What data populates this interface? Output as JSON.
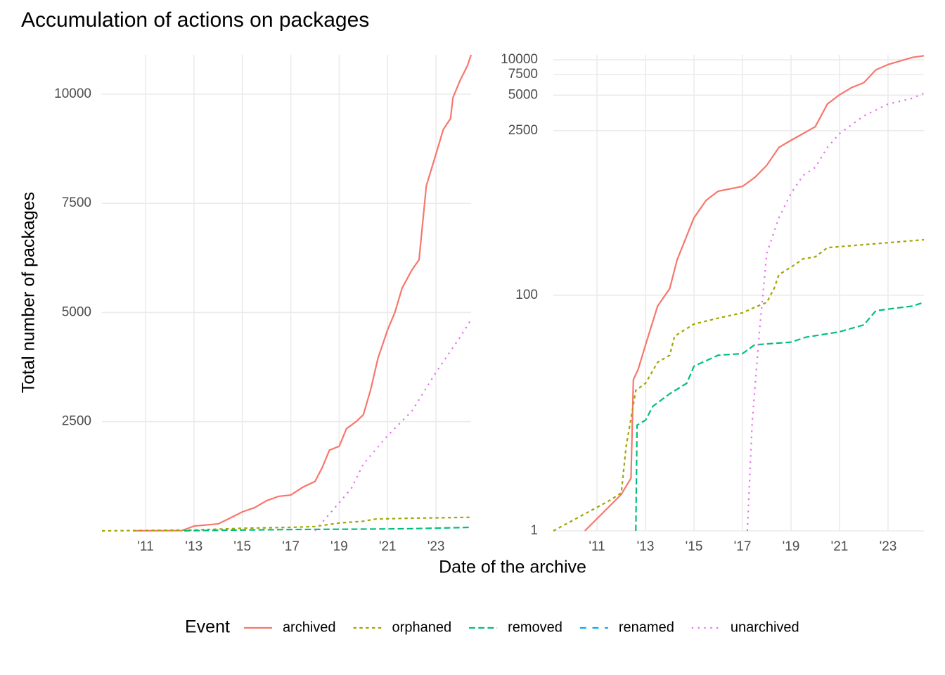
{
  "title": "Accumulation of actions on packages",
  "xlabel": "Date of the archive",
  "ylabel": "Total number of packages",
  "legend_title": "Event",
  "legend_position": "bottom",
  "chart_data": [
    {
      "type": "line",
      "log_y": false,
      "grid": true,
      "xlim": [
        2009.2,
        2024.45
      ],
      "ylim": [
        0,
        10900
      ],
      "xticks": [
        {
          "value": 2011,
          "label": "'11"
        },
        {
          "value": 2013,
          "label": "'13"
        },
        {
          "value": 2015,
          "label": "'15"
        },
        {
          "value": 2017,
          "label": "'17"
        },
        {
          "value": 2019,
          "label": "'19"
        },
        {
          "value": 2021,
          "label": "'21"
        },
        {
          "value": 2023,
          "label": "'23"
        }
      ],
      "yticks": [
        2500,
        5000,
        7500,
        10000
      ],
      "series": [
        {
          "name": "archived",
          "color": "#F8766D",
          "linetype": "solid",
          "x": [
            2010.5,
            2012.5,
            2013,
            2014,
            2014.3,
            2015,
            2015.5,
            2016,
            2016.5,
            2017,
            2017.5,
            2018,
            2018.3,
            2018.6,
            2019,
            2019.3,
            2019.7,
            2020,
            2020.3,
            2020.6,
            2021,
            2021.3,
            2021.6,
            2022,
            2022.3,
            2022.5,
            2022.6,
            2023,
            2023.3,
            2023.6,
            2023.7,
            2024,
            2024.3,
            2024.45
          ],
          "values": [
            1,
            5,
            110,
            160,
            240,
            435,
            530,
            690,
            790,
            820,
            1000,
            1130,
            1450,
            1850,
            1935,
            2340,
            2500,
            2660,
            3230,
            3950,
            4600,
            5000,
            5560,
            5970,
            6210,
            7340,
            7900,
            8630,
            9190,
            9440,
            9920,
            10320,
            10650,
            10900
          ]
        },
        {
          "name": "orphaned",
          "color": "#A3A500",
          "linetype": "22",
          "x": [
            2009.2,
            2013,
            2015,
            2017,
            2018,
            2019,
            2020,
            2020.5,
            2022,
            2024.45
          ],
          "values": [
            0,
            20,
            60,
            80,
            100,
            180,
            220,
            270,
            290,
            310
          ]
        },
        {
          "name": "removed",
          "color": "#00BF7D",
          "linetype": "42",
          "x": [
            2012.6,
            2013,
            2015,
            2017,
            2020,
            2022,
            2024.45
          ],
          "values": [
            1,
            5,
            20,
            30,
            40,
            50,
            80
          ]
        },
        {
          "name": "renamed",
          "color": "#00B0F6",
          "linetype": "44",
          "x": [],
          "values": []
        },
        {
          "name": "unarchived",
          "color": "#E76BF3",
          "linetype": "13",
          "x": [
            2018,
            2019,
            2019.5,
            2020,
            2021,
            2022,
            2023,
            2024,
            2024.45
          ],
          "values": [
            1,
            645,
            970,
            1530,
            2180,
            2740,
            3630,
            4440,
            4840
          ]
        }
      ]
    },
    {
      "type": "line",
      "log_y": true,
      "grid": true,
      "xlim": [
        2009.2,
        2024.48
      ],
      "ylim": [
        1,
        11000
      ],
      "xticks": [
        {
          "value": 2011,
          "label": "'11"
        },
        {
          "value": 2013,
          "label": "'13"
        },
        {
          "value": 2015,
          "label": "'15"
        },
        {
          "value": 2017,
          "label": "'17"
        },
        {
          "value": 2019,
          "label": "'19"
        },
        {
          "value": 2021,
          "label": "'21"
        },
        {
          "value": 2023,
          "label": "'23"
        }
      ],
      "yticks": [
        1,
        100,
        2500,
        5000,
        7500,
        10000
      ],
      "series": [
        {
          "name": "archived",
          "color": "#F8766D",
          "linetype": "solid",
          "x": [
            2010.5,
            2012,
            2012.4,
            2012.5,
            2012.7,
            2013,
            2013.5,
            2014,
            2014.3,
            2015,
            2015.5,
            2016,
            2017,
            2017.5,
            2018,
            2018.5,
            2019,
            2019.5,
            2020,
            2020.5,
            2021,
            2021.5,
            2022,
            2022.5,
            2023,
            2024,
            2024.48
          ],
          "values": [
            1,
            2.04,
            2.8,
            19.2,
            23.6,
            38,
            81,
            114,
            199,
            455,
            640,
            765,
            840,
            1000,
            1270,
            1800,
            2070,
            2360,
            2700,
            4200,
            5040,
            5800,
            6380,
            8200,
            9100,
            10460,
            10800
          ]
        },
        {
          "name": "orphaned",
          "color": "#A3A500",
          "linetype": "22",
          "x": [
            2009.2,
            2011.5,
            2012,
            2012.2,
            2012.6,
            2013,
            2013.5,
            2014,
            2014.2,
            2015,
            2016,
            2017,
            2017.5,
            2018,
            2018.3,
            2018.5,
            2019,
            2019.5,
            2020,
            2020.5,
            2022,
            2024.48
          ],
          "values": [
            1,
            1.8,
            2.1,
            5.2,
            15.6,
            17.9,
            27,
            31,
            45,
            57,
            64,
            71,
            79,
            87,
            114,
            150,
            173,
            204,
            212,
            254,
            269,
            296
          ]
        },
        {
          "name": "removed",
          "color": "#00BF7D",
          "linetype": "42",
          "x": [
            2012.6,
            2012.65,
            2013,
            2013.3,
            2014,
            2014.7,
            2015,
            2016,
            2017,
            2017.5,
            2019,
            2019.6,
            2021,
            2022,
            2022.5,
            2024,
            2024.48
          ],
          "values": [
            1,
            7.9,
            8.7,
            11.4,
            14.6,
            17.9,
            25,
            31,
            32,
            38,
            40,
            44,
            49,
            56,
            74,
            81,
            87
          ]
        },
        {
          "name": "renamed",
          "color": "#00B0F6",
          "linetype": "44",
          "x": [],
          "values": []
        },
        {
          "name": "unarchived",
          "color": "#E76BF3",
          "linetype": "13",
          "x": [
            2017.2,
            2017.4,
            2017.7,
            2018,
            2018.5,
            2019,
            2019.5,
            2020,
            2020.5,
            2021,
            2022,
            2023,
            2024,
            2024.48
          ],
          "values": [
            1,
            8.4,
            50,
            227,
            455,
            735,
            1040,
            1220,
            1800,
            2360,
            3330,
            4200,
            4700,
            5200
          ]
        }
      ]
    }
  ]
}
